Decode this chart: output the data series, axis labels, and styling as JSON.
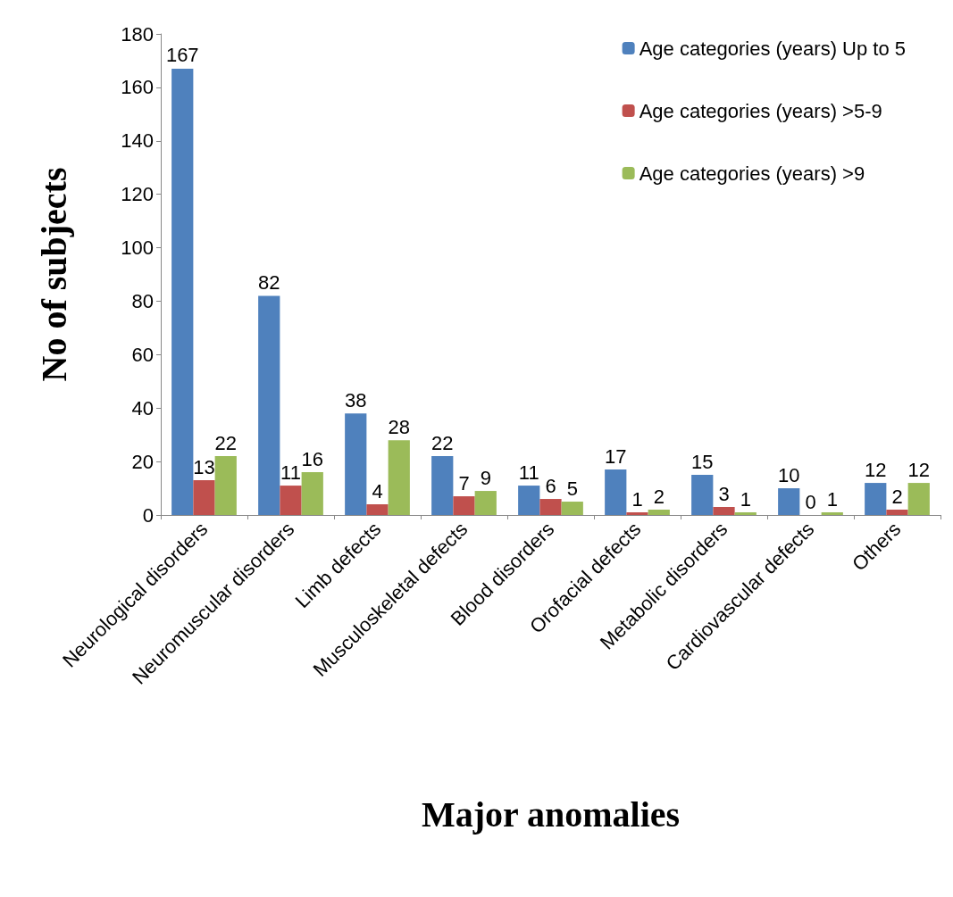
{
  "chart_data": {
    "type": "bar",
    "xlabel": "Major anomalies",
    "ylabel": "No of subjects",
    "categories": [
      "Neurological disorders",
      "Neuromuscular disorders",
      "Limb defects",
      "Musculoskeletal defects",
      "Blood disorders",
      "Orofacial defects",
      "Metabolic disorders",
      "Cardiovascular defects",
      "Others"
    ],
    "series": [
      {
        "name": "Age categories (years) Up to 5",
        "color": "#4f81bd",
        "values": [
          167,
          82,
          38,
          22,
          11,
          17,
          15,
          10,
          12
        ]
      },
      {
        "name": "Age categories (years) >5-9",
        "color": "#c0504d",
        "values": [
          13,
          11,
          4,
          7,
          6,
          1,
          3,
          0,
          2
        ]
      },
      {
        "name": "Age categories (years) >9",
        "color": "#9bbb59",
        "values": [
          22,
          16,
          28,
          9,
          5,
          2,
          1,
          1,
          12
        ]
      }
    ],
    "ylim": [
      0,
      180
    ],
    "yticks": [
      0,
      20,
      40,
      60,
      80,
      100,
      120,
      140,
      160,
      180
    ],
    "data_labels": true,
    "legend": "top right",
    "grid": false
  }
}
